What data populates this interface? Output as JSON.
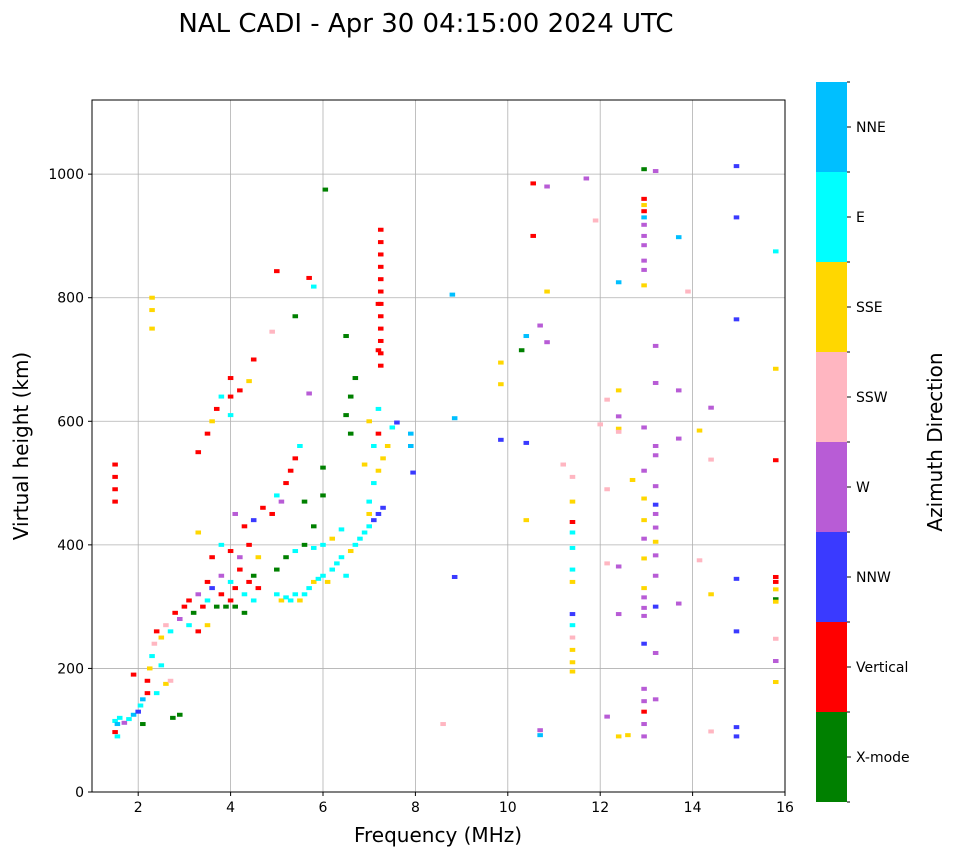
{
  "chart_data": {
    "type": "scatter",
    "title": "NAL CADI - Apr 30 04:15:00 2024 UTC",
    "xlabel": "Frequency (MHz)",
    "ylabel": "Virtual height (km)",
    "xlim": [
      1,
      16
    ],
    "ylim": [
      0,
      1120
    ],
    "xticks": [
      2,
      4,
      6,
      8,
      10,
      12,
      14,
      16
    ],
    "yticks": [
      0,
      200,
      400,
      600,
      800,
      1000
    ],
    "grid": true,
    "colorbar": {
      "label": "Azimuth Direction",
      "categories": [
        "X-mode",
        "Vertical",
        "NNW",
        "W",
        "SSW",
        "SSE",
        "E",
        "NNE"
      ],
      "colors": [
        "#008000",
        "#ff0000",
        "#3a3aff",
        "#b85cd6",
        "#ffb6c1",
        "#ffd700",
        "#00ffff",
        "#00bfff"
      ]
    },
    "points": [
      [
        1.5,
        115,
        6
      ],
      [
        1.55,
        110,
        7
      ],
      [
        1.6,
        120,
        6
      ],
      [
        1.7,
        112,
        3
      ],
      [
        1.5,
        97,
        1
      ],
      [
        1.55,
        90,
        6
      ],
      [
        1.8,
        118,
        6
      ],
      [
        1.9,
        125,
        7
      ],
      [
        2.0,
        130,
        2
      ],
      [
        2.05,
        140,
        6
      ],
      [
        2.1,
        150,
        7
      ],
      [
        2.1,
        110,
        0
      ],
      [
        2.2,
        160,
        1
      ],
      [
        2.2,
        180,
        1
      ],
      [
        2.25,
        200,
        5
      ],
      [
        2.3,
        220,
        6
      ],
      [
        2.35,
        240,
        4
      ],
      [
        2.4,
        260,
        1
      ],
      [
        2.5,
        250,
        5
      ],
      [
        2.6,
        270,
        4
      ],
      [
        2.7,
        260,
        6
      ],
      [
        2.8,
        290,
        1
      ],
      [
        2.9,
        280,
        3
      ],
      [
        3.0,
        300,
        1
      ],
      [
        2.6,
        175,
        5
      ],
      [
        2.7,
        180,
        4
      ],
      [
        2.5,
        205,
        6
      ],
      [
        2.4,
        160,
        6
      ],
      [
        1.9,
        190,
        1
      ],
      [
        2.75,
        120,
        0
      ],
      [
        2.9,
        125,
        0
      ],
      [
        1.5,
        470,
        1
      ],
      [
        1.5,
        490,
        1
      ],
      [
        1.5,
        510,
        1
      ],
      [
        1.5,
        530,
        1
      ],
      [
        2.3,
        800,
        5
      ],
      [
        2.3,
        780,
        5
      ],
      [
        2.3,
        750,
        5
      ],
      [
        3.1,
        310,
        1
      ],
      [
        3.2,
        290,
        0
      ],
      [
        3.3,
        320,
        3
      ],
      [
        3.4,
        300,
        1
      ],
      [
        3.5,
        310,
        6
      ],
      [
        3.5,
        340,
        1
      ],
      [
        3.6,
        330,
        2
      ],
      [
        3.7,
        300,
        0
      ],
      [
        3.8,
        320,
        1
      ],
      [
        3.8,
        350,
        3
      ],
      [
        3.9,
        300,
        0
      ],
      [
        4.0,
        310,
        1
      ],
      [
        4.0,
        340,
        6
      ],
      [
        4.1,
        300,
        0
      ],
      [
        4.1,
        330,
        1
      ],
      [
        4.2,
        360,
        1
      ],
      [
        4.3,
        320,
        6
      ],
      [
        4.3,
        290,
        0
      ],
      [
        4.4,
        340,
        1
      ],
      [
        4.5,
        310,
        6
      ],
      [
        4.5,
        350,
        0
      ],
      [
        4.6,
        330,
        1
      ],
      [
        3.6,
        380,
        1
      ],
      [
        3.8,
        400,
        6
      ],
      [
        4.0,
        390,
        1
      ],
      [
        4.2,
        380,
        3
      ],
      [
        4.4,
        400,
        1
      ],
      [
        4.6,
        380,
        5
      ],
      [
        3.3,
        420,
        5
      ],
      [
        3.5,
        270,
        5
      ],
      [
        3.3,
        260,
        1
      ],
      [
        3.1,
        270,
        6
      ],
      [
        4.1,
        450,
        3
      ],
      [
        4.3,
        430,
        1
      ],
      [
        4.5,
        440,
        2
      ],
      [
        4.7,
        460,
        1
      ],
      [
        4.9,
        450,
        1
      ],
      [
        5.0,
        480,
        6
      ],
      [
        5.1,
        470,
        3
      ],
      [
        5.2,
        500,
        1
      ],
      [
        5.3,
        520,
        1
      ],
      [
        5.4,
        540,
        1
      ],
      [
        5.5,
        560,
        6
      ],
      [
        5.6,
        470,
        0
      ],
      [
        5.8,
        430,
        0
      ],
      [
        6.0,
        480,
        0
      ],
      [
        6.0,
        525,
        0
      ],
      [
        3.3,
        550,
        1
      ],
      [
        3.5,
        580,
        1
      ],
      [
        3.6,
        600,
        5
      ],
      [
        3.7,
        620,
        1
      ],
      [
        3.8,
        640,
        6
      ],
      [
        4.0,
        640,
        1
      ],
      [
        4.0,
        670,
        1
      ],
      [
        4.0,
        610,
        6
      ],
      [
        4.2,
        650,
        1
      ],
      [
        4.4,
        665,
        5
      ],
      [
        4.5,
        700,
        1
      ],
      [
        4.9,
        745,
        4
      ],
      [
        5.0,
        843,
        1
      ],
      [
        5.4,
        770,
        0
      ],
      [
        5.7,
        832,
        1
      ],
      [
        5.8,
        818,
        6
      ],
      [
        6.05,
        975,
        0
      ],
      [
        5.7,
        645,
        3
      ],
      [
        5.0,
        320,
        6
      ],
      [
        5.1,
        310,
        5
      ],
      [
        5.2,
        315,
        6
      ],
      [
        5.3,
        310,
        6
      ],
      [
        5.4,
        320,
        6
      ],
      [
        5.5,
        310,
        5
      ],
      [
        5.6,
        320,
        6
      ],
      [
        5.7,
        330,
        6
      ],
      [
        5.8,
        340,
        5
      ],
      [
        5.9,
        345,
        6
      ],
      [
        6.0,
        350,
        6
      ],
      [
        6.1,
        340,
        5
      ],
      [
        6.2,
        360,
        6
      ],
      [
        6.3,
        370,
        6
      ],
      [
        6.4,
        380,
        6
      ],
      [
        6.5,
        350,
        6
      ],
      [
        6.6,
        390,
        5
      ],
      [
        6.7,
        400,
        6
      ],
      [
        6.8,
        410,
        6
      ],
      [
        6.9,
        420,
        6
      ],
      [
        7.0,
        430,
        6
      ],
      [
        7.1,
        440,
        2
      ],
      [
        7.2,
        450,
        2
      ],
      [
        7.3,
        460,
        2
      ],
      [
        5.0,
        360,
        0
      ],
      [
        5.2,
        380,
        0
      ],
      [
        5.4,
        390,
        6
      ],
      [
        5.6,
        400,
        0
      ],
      [
        5.8,
        395,
        6
      ],
      [
        6.0,
        400,
        6
      ],
      [
        6.2,
        410,
        5
      ],
      [
        6.4,
        425,
        6
      ],
      [
        6.6,
        580,
        0
      ],
      [
        6.5,
        610,
        0
      ],
      [
        6.6,
        640,
        0
      ],
      [
        6.7,
        670,
        0
      ],
      [
        6.5,
        738,
        0
      ],
      [
        7.0,
        470,
        6
      ],
      [
        7.1,
        500,
        6
      ],
      [
        7.2,
        520,
        5
      ],
      [
        7.3,
        540,
        5
      ],
      [
        7.1,
        560,
        6
      ],
      [
        7.2,
        580,
        1
      ],
      [
        7.0,
        600,
        5
      ],
      [
        7.4,
        560,
        5
      ],
      [
        7.5,
        590,
        6
      ],
      [
        7.6,
        598,
        2
      ],
      [
        7.2,
        620,
        6
      ],
      [
        6.9,
        530,
        5
      ],
      [
        7.0,
        450,
        5
      ],
      [
        7.9,
        580,
        7
      ],
      [
        7.9,
        560,
        7
      ],
      [
        7.95,
        517,
        2
      ],
      [
        7.25,
        690,
        1
      ],
      [
        7.25,
        710,
        1
      ],
      [
        7.25,
        730,
        1
      ],
      [
        7.25,
        750,
        1
      ],
      [
        7.25,
        770,
        1
      ],
      [
        7.25,
        790,
        1
      ],
      [
        7.25,
        810,
        1
      ],
      [
        7.25,
        830,
        1
      ],
      [
        7.25,
        850,
        1
      ],
      [
        7.25,
        870,
        1
      ],
      [
        7.25,
        890,
        1
      ],
      [
        7.25,
        910,
        1
      ],
      [
        7.2,
        715,
        1
      ],
      [
        7.2,
        790,
        1
      ],
      [
        8.8,
        805,
        7
      ],
      [
        8.85,
        605,
        7
      ],
      [
        8.85,
        348,
        2
      ],
      [
        8.6,
        110,
        4
      ],
      [
        9.85,
        695,
        5
      ],
      [
        9.85,
        660,
        5
      ],
      [
        9.85,
        570,
        2
      ],
      [
        10.3,
        715,
        0
      ],
      [
        10.4,
        738,
        7
      ],
      [
        10.4,
        565,
        2
      ],
      [
        10.4,
        440,
        5
      ],
      [
        10.55,
        985,
        1
      ],
      [
        10.55,
        900,
        1
      ],
      [
        10.7,
        755,
        3
      ],
      [
        10.85,
        980,
        3
      ],
      [
        10.85,
        810,
        5
      ],
      [
        10.85,
        728,
        3
      ],
      [
        10.7,
        100,
        3
      ],
      [
        10.7,
        92,
        7
      ],
      [
        11.2,
        530,
        4
      ],
      [
        11.4,
        510,
        4
      ],
      [
        11.4,
        470,
        5
      ],
      [
        11.4,
        437,
        1
      ],
      [
        11.4,
        420,
        6
      ],
      [
        11.4,
        395,
        6
      ],
      [
        11.4,
        360,
        6
      ],
      [
        11.4,
        340,
        5
      ],
      [
        11.4,
        288,
        2
      ],
      [
        11.4,
        270,
        6
      ],
      [
        11.4,
        250,
        4
      ],
      [
        11.4,
        230,
        5
      ],
      [
        11.4,
        210,
        5
      ],
      [
        11.4,
        195,
        5
      ],
      [
        11.7,
        993,
        3
      ],
      [
        11.9,
        925,
        4
      ],
      [
        12.0,
        595,
        4
      ],
      [
        12.15,
        635,
        4
      ],
      [
        12.15,
        490,
        4
      ],
      [
        12.15,
        370,
        4
      ],
      [
        12.15,
        122,
        3
      ],
      [
        12.4,
        825,
        7
      ],
      [
        12.4,
        650,
        5
      ],
      [
        12.4,
        608,
        3
      ],
      [
        12.4,
        588,
        5
      ],
      [
        12.4,
        583,
        4
      ],
      [
        12.4,
        365,
        3
      ],
      [
        12.4,
        288,
        3
      ],
      [
        12.4,
        90,
        5
      ],
      [
        12.6,
        92,
        5
      ],
      [
        12.7,
        505,
        5
      ],
      [
        12.95,
        1008,
        0
      ],
      [
        12.95,
        960,
        1
      ],
      [
        12.95,
        950,
        5
      ],
      [
        12.95,
        940,
        1
      ],
      [
        12.95,
        930,
        7
      ],
      [
        12.95,
        918,
        3
      ],
      [
        12.95,
        900,
        3
      ],
      [
        12.95,
        885,
        3
      ],
      [
        12.95,
        860,
        3
      ],
      [
        12.95,
        845,
        3
      ],
      [
        12.95,
        820,
        5
      ],
      [
        12.95,
        590,
        3
      ],
      [
        12.95,
        520,
        3
      ],
      [
        12.95,
        475,
        5
      ],
      [
        12.95,
        440,
        5
      ],
      [
        12.95,
        410,
        3
      ],
      [
        12.95,
        378,
        5
      ],
      [
        12.95,
        330,
        5
      ],
      [
        12.95,
        315,
        3
      ],
      [
        12.95,
        298,
        3
      ],
      [
        12.95,
        285,
        3
      ],
      [
        12.95,
        240,
        2
      ],
      [
        12.95,
        167,
        3
      ],
      [
        12.95,
        147,
        3
      ],
      [
        12.95,
        130,
        1
      ],
      [
        12.95,
        110,
        3
      ],
      [
        12.95,
        90,
        3
      ],
      [
        13.2,
        1005,
        3
      ],
      [
        13.2,
        722,
        3
      ],
      [
        13.2,
        662,
        3
      ],
      [
        13.2,
        560,
        3
      ],
      [
        13.2,
        545,
        3
      ],
      [
        13.2,
        495,
        3
      ],
      [
        13.2,
        465,
        2
      ],
      [
        13.2,
        450,
        3
      ],
      [
        13.2,
        428,
        3
      ],
      [
        13.2,
        405,
        5
      ],
      [
        13.2,
        383,
        3
      ],
      [
        13.2,
        350,
        3
      ],
      [
        13.2,
        300,
        2
      ],
      [
        13.2,
        225,
        3
      ],
      [
        13.2,
        150,
        3
      ],
      [
        13.7,
        898,
        7
      ],
      [
        13.7,
        650,
        3
      ],
      [
        13.7,
        572,
        3
      ],
      [
        13.7,
        305,
        3
      ],
      [
        13.9,
        810,
        4
      ],
      [
        14.15,
        585,
        5
      ],
      [
        14.15,
        375,
        4
      ],
      [
        14.4,
        622,
        3
      ],
      [
        14.4,
        538,
        4
      ],
      [
        14.4,
        320,
        5
      ],
      [
        14.4,
        98,
        4
      ],
      [
        14.95,
        1013,
        2
      ],
      [
        14.95,
        930,
        2
      ],
      [
        14.95,
        765,
        2
      ],
      [
        14.95,
        345,
        2
      ],
      [
        14.95,
        260,
        2
      ],
      [
        14.95,
        105,
        2
      ],
      [
        14.95,
        90,
        2
      ],
      [
        15.8,
        875,
        6
      ],
      [
        15.8,
        685,
        5
      ],
      [
        15.8,
        537,
        1
      ],
      [
        15.8,
        348,
        1
      ],
      [
        15.8,
        340,
        1
      ],
      [
        15.8,
        328,
        5
      ],
      [
        15.8,
        312,
        0
      ],
      [
        15.8,
        308,
        5
      ],
      [
        15.8,
        248,
        4
      ],
      [
        15.8,
        212,
        3
      ],
      [
        15.8,
        178,
        5
      ]
    ]
  }
}
